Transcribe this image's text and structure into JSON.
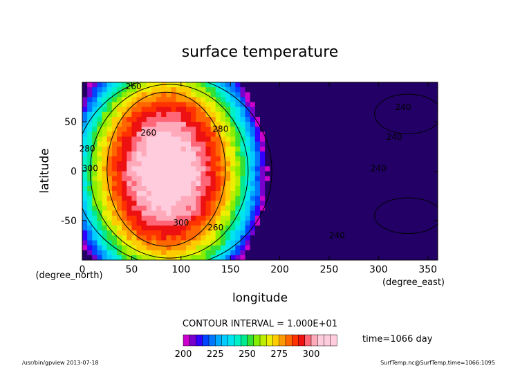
{
  "chart_data": {
    "type": "heatmap",
    "title": "surface temperature",
    "xlabel": "longitude",
    "ylabel": "latitude",
    "x_units": "(degree_east)",
    "y_units": "(degree_north)",
    "xlim": [
      0,
      360
    ],
    "ylim": [
      -90,
      90
    ],
    "x_ticks": [
      0,
      50,
      100,
      150,
      200,
      250,
      300,
      350
    ],
    "y_ticks": [
      -50,
      0,
      50
    ],
    "contour_interval_text": "CONTOUR INTERVAL = 1.000E+01",
    "contour_labels": [
      "260",
      "280",
      "300",
      "260",
      "280",
      "300",
      "260",
      "240",
      "240",
      "240",
      "240"
    ],
    "colorbar_ticks": [
      200,
      225,
      250,
      275,
      300
    ],
    "colorbar_range": [
      200,
      320
    ],
    "colorbar_step": 5,
    "time_text": "time=1066 day",
    "colors": {
      "scale": [
        "#cc00cc",
        "#7700cc",
        "#3300ff",
        "#0044ff",
        "#0077ff",
        "#00aaff",
        "#00ccff",
        "#00e5f0",
        "#00f0c8",
        "#00e890",
        "#33e033",
        "#88ee00",
        "#bbee00",
        "#eeee00",
        "#ffcc00",
        "#ff9900",
        "#ff6600",
        "#ff3300",
        "#ee1111",
        "#ff6677",
        "#ffaabb",
        "#ffccdd"
      ]
    }
  },
  "footer": {
    "command": "/usr/bin/gpview  2013-07-18",
    "source": "SurfTemp.nc@SurfTemp,time=1066:1095"
  }
}
